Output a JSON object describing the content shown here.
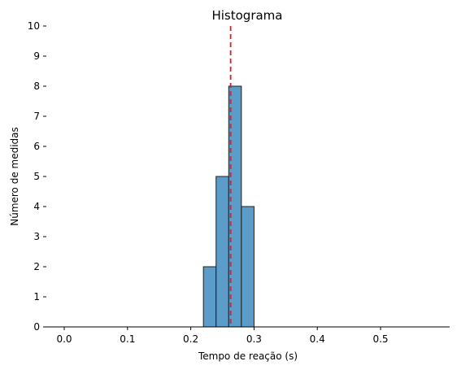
{
  "chart_data": {
    "type": "bar",
    "title": "Histograma",
    "xlabel": "Tempo de reação (s)",
    "ylabel": "Número de medidas",
    "xlim": [
      -0.04,
      0.61
    ],
    "ylim": [
      0,
      10
    ],
    "xticks": [
      0.0,
      0.1,
      0.2,
      0.3,
      0.4,
      0.5
    ],
    "xtick_labels": [
      "0.0",
      "0.1",
      "0.2",
      "0.3",
      "0.4",
      "0.5"
    ],
    "yticks": [
      0,
      1,
      2,
      3,
      4,
      5,
      6,
      7,
      8,
      9,
      10
    ],
    "ytick_labels": [
      "0",
      "1",
      "2",
      "3",
      "4",
      "5",
      "6",
      "7",
      "8",
      "9",
      "10"
    ],
    "bins": [
      {
        "start": 0.22,
        "end": 0.24,
        "count": 2
      },
      {
        "start": 0.24,
        "end": 0.26,
        "count": 5
      },
      {
        "start": 0.26,
        "end": 0.28,
        "count": 8
      },
      {
        "start": 0.28,
        "end": 0.3,
        "count": 4
      }
    ],
    "mean_line": 0.263,
    "bar_color": "#5b9cc9",
    "bar_edge_color": "#1f1f1f",
    "mean_line_color": "#e41a1c",
    "grid": false
  }
}
